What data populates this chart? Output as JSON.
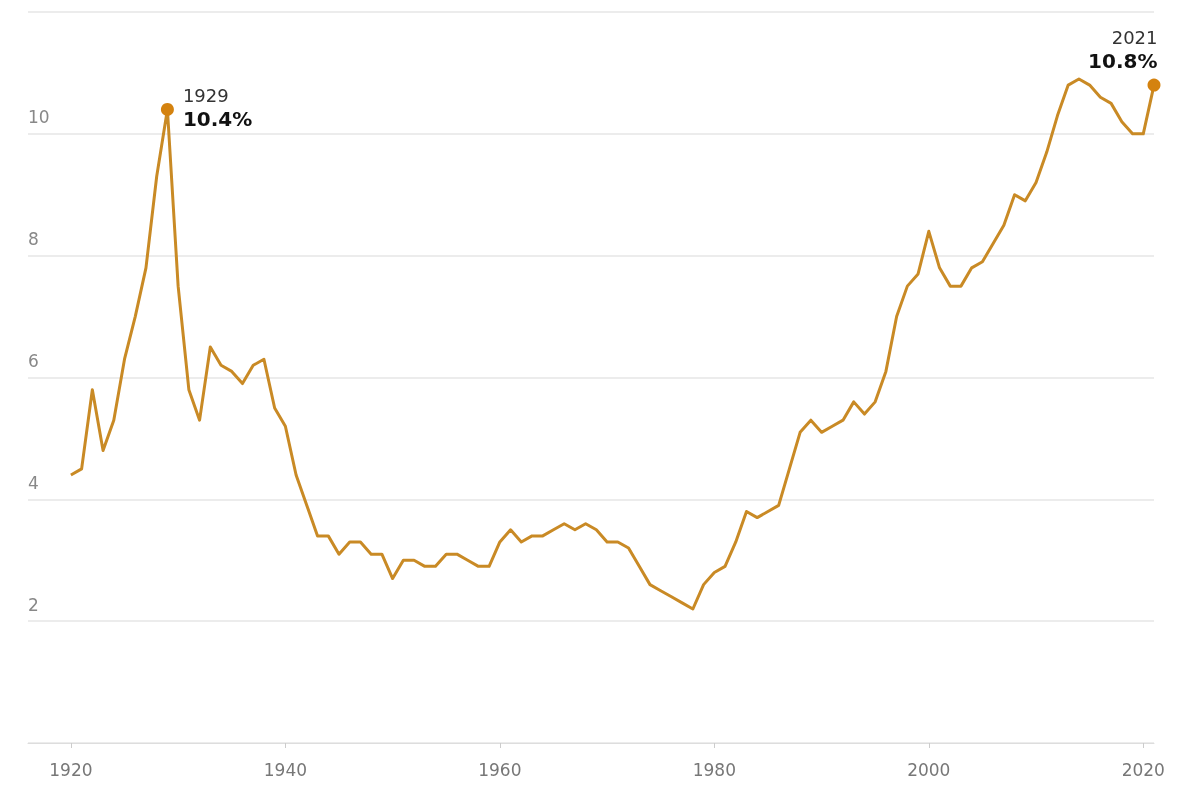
{
  "chart_data": {
    "type": "line",
    "x": [
      1920,
      1921,
      1922,
      1923,
      1924,
      1925,
      1926,
      1927,
      1928,
      1929,
      1930,
      1931,
      1932,
      1933,
      1934,
      1935,
      1936,
      1937,
      1938,
      1939,
      1940,
      1941,
      1942,
      1943,
      1944,
      1945,
      1946,
      1947,
      1948,
      1949,
      1950,
      1951,
      1952,
      1953,
      1954,
      1955,
      1956,
      1957,
      1958,
      1959,
      1960,
      1961,
      1962,
      1963,
      1964,
      1965,
      1966,
      1967,
      1968,
      1969,
      1970,
      1971,
      1972,
      1973,
      1974,
      1975,
      1976,
      1977,
      1978,
      1979,
      1980,
      1981,
      1982,
      1983,
      1984,
      1985,
      1986,
      1987,
      1988,
      1989,
      1990,
      1991,
      1992,
      1993,
      1994,
      1995,
      1996,
      1997,
      1998,
      1999,
      2000,
      2001,
      2002,
      2003,
      2004,
      2005,
      2006,
      2007,
      2008,
      2009,
      2010,
      2011,
      2012,
      2013,
      2014,
      2015,
      2016,
      2017,
      2018,
      2019,
      2020,
      2021
    ],
    "series": [
      {
        "color": "#c98a25",
        "values": [
          4.4,
          4.5,
          5.8,
          4.8,
          5.3,
          6.3,
          7.0,
          7.8,
          9.3,
          10.4,
          7.5,
          5.8,
          5.3,
          6.5,
          6.2,
          6.1,
          5.9,
          6.2,
          6.3,
          5.5,
          5.2,
          4.4,
          3.9,
          3.4,
          3.4,
          3.1,
          3.3,
          3.3,
          3.1,
          3.1,
          2.7,
          3.0,
          3.0,
          2.9,
          2.9,
          3.1,
          3.1,
          3.0,
          2.9,
          2.9,
          3.3,
          3.5,
          3.3,
          3.4,
          3.4,
          3.5,
          3.6,
          3.5,
          3.6,
          3.5,
          3.3,
          3.3,
          3.2,
          2.9,
          2.6,
          2.5,
          2.4,
          2.3,
          2.2,
          2.6,
          2.8,
          2.9,
          3.3,
          3.8,
          3.7,
          3.8,
          3.9,
          4.5,
          5.1,
          5.3,
          5.1,
          5.2,
          5.3,
          5.6,
          5.4,
          5.6,
          6.1,
          7.0,
          7.5,
          7.7,
          8.4,
          7.8,
          7.5,
          7.5,
          7.8,
          7.9,
          8.2,
          8.5,
          9.0,
          8.9,
          9.2,
          9.7,
          10.3,
          10.8,
          10.9,
          10.8,
          10.6,
          10.5,
          10.2,
          10.0,
          10.0,
          10.8
        ]
      }
    ],
    "annotations": [
      {
        "text": "1929\n10.4%",
        "x": 1929,
        "y": 10.4
      },
      {
        "text": "2021\n10.8%",
        "x": 2021,
        "y": 10.8
      }
    ],
    "xlim": [
      1916,
      2021
    ],
    "xticks": [
      1920,
      1940,
      1960,
      1980,
      2000,
      2020
    ],
    "ylim": [
      0,
      12
    ],
    "yticks": [
      {
        "value": 0,
        "label": null
      },
      2,
      4,
      6,
      8,
      10,
      {
        "value": 12,
        "label": null
      }
    ],
    "grid": "y",
    "marker": "none",
    "line_style": "solid"
  }
}
